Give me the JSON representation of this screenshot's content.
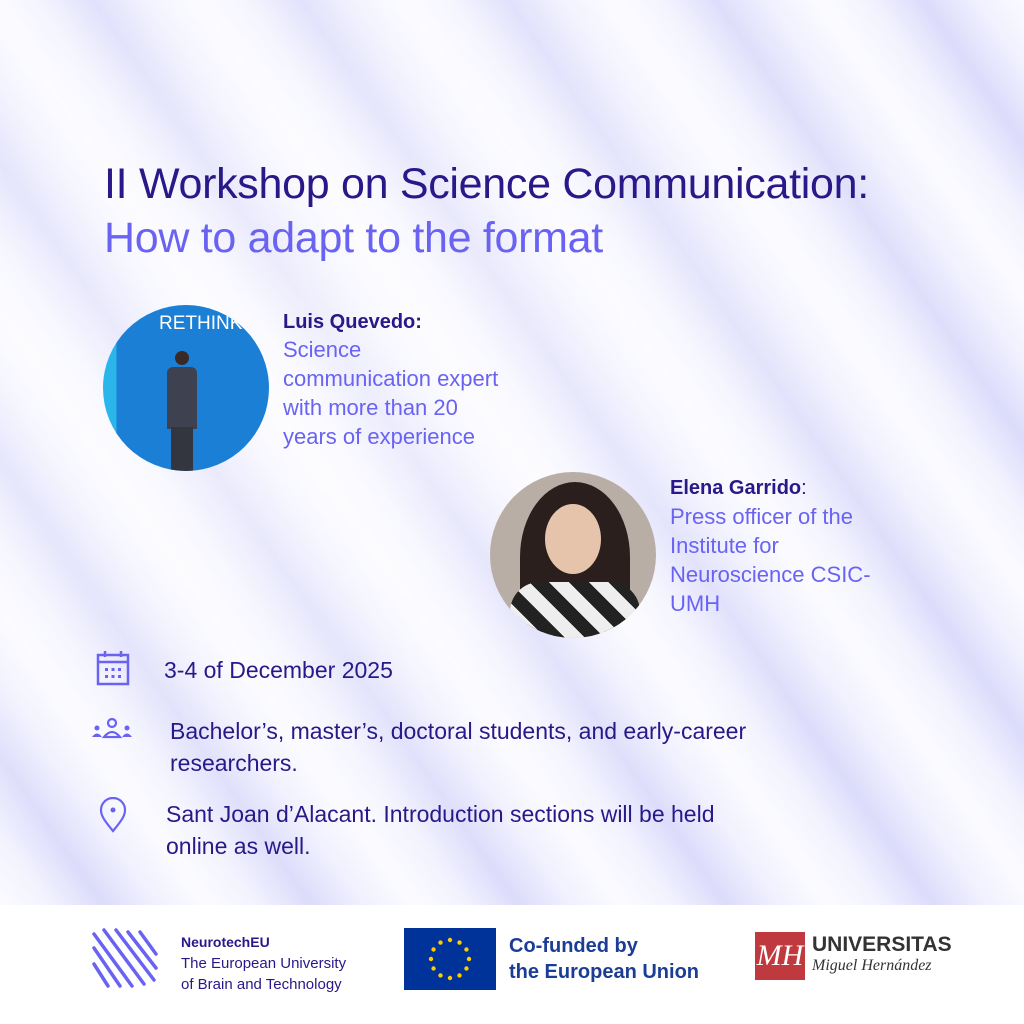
{
  "title": {
    "line1": "II Workshop on Science Communication:",
    "line2": "How to adapt to the format"
  },
  "speakers": [
    {
      "name": "Luis Quevedo:",
      "description": [
        "Science",
        "communication expert",
        "with more than 20",
        "years of experience"
      ],
      "photo_text": "RETHINK"
    },
    {
      "name": "Elena Garrido",
      "name_suffix": ":",
      "description": [
        "Press officer of the",
        "Institute for",
        "Neuroscience CSIC-",
        "UMH"
      ]
    }
  ],
  "details": {
    "date": "3-4 of December 2025",
    "audience": [
      "Bachelor’s, master’s, doctoral students, and early-career",
      "researchers."
    ],
    "location": [
      "Sant Joan d’Alacant. Introduction sections will be held",
      "online as well."
    ]
  },
  "icons": {
    "date": "calendar-icon",
    "audience": "people-group-icon",
    "location": "map-pin-icon"
  },
  "footer": {
    "neurotech": {
      "name": "NeurotechEU",
      "line1": "The European University",
      "line2": "of Brain and Technology"
    },
    "eu": {
      "line1": "Co-funded by",
      "line2": "the European Union"
    },
    "umh": {
      "line1": "UNIVERSITAS",
      "line2": "Miguel Hernández"
    }
  },
  "colors": {
    "dark": "#2a1788",
    "accent": "#6a63f2",
    "eu_blue": "#003399",
    "eu_star": "#ffcc00",
    "umh_red": "#c0393f"
  }
}
